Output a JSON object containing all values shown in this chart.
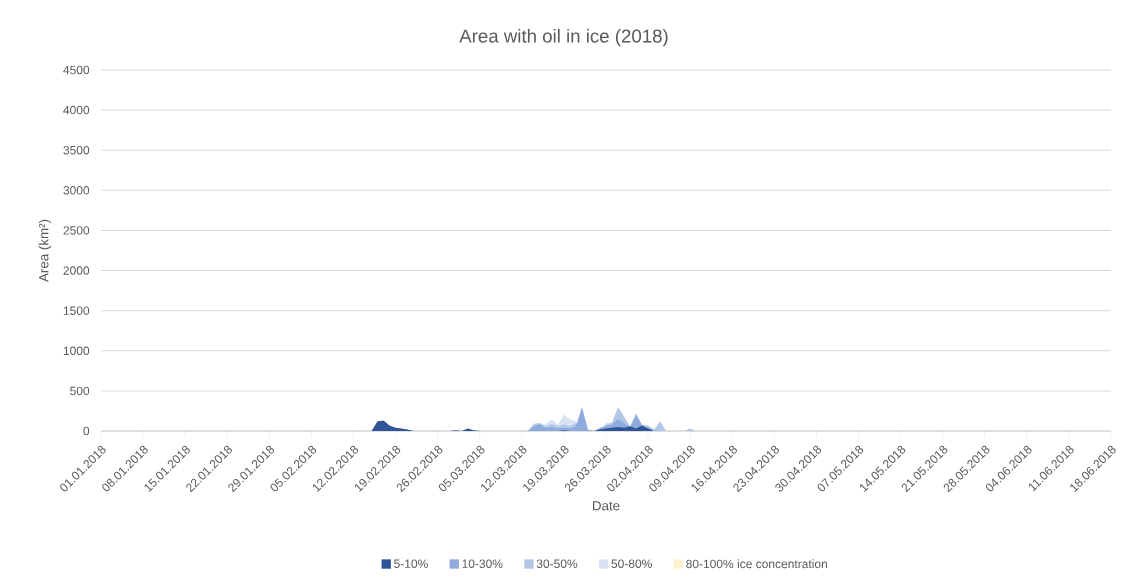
{
  "chart_data": {
    "type": "area",
    "title": "Area with oil in ice (2018)",
    "xlabel": "Date",
    "ylabel": "Area (km²)",
    "xlim": [
      "2018-01-01",
      "2018-06-18"
    ],
    "xticks": [
      {
        "value": "2018-01-01",
        "label": "01.01.2018"
      },
      {
        "value": "2018-01-08",
        "label": "08.01.2018"
      },
      {
        "value": "2018-01-15",
        "label": "15.01.2018"
      },
      {
        "value": "2018-01-22",
        "label": "22.01.2018"
      },
      {
        "value": "2018-01-29",
        "label": "29.01.2018"
      },
      {
        "value": "2018-02-05",
        "label": "05.02.2018"
      },
      {
        "value": "2018-02-12",
        "label": "12.02.2018"
      },
      {
        "value": "2018-02-19",
        "label": "19.02.2018"
      },
      {
        "value": "2018-02-26",
        "label": "26.02.2018"
      },
      {
        "value": "2018-03-05",
        "label": "05.03.2018"
      },
      {
        "value": "2018-03-12",
        "label": "12.03.2018"
      },
      {
        "value": "2018-03-19",
        "label": "19.03.2018"
      },
      {
        "value": "2018-03-26",
        "label": "26.03.2018"
      },
      {
        "value": "2018-04-02",
        "label": "02.04.2018"
      },
      {
        "value": "2018-04-09",
        "label": "09.04.2018"
      },
      {
        "value": "2018-04-16",
        "label": "16.04.2018"
      },
      {
        "value": "2018-04-23",
        "label": "23.04.2018"
      },
      {
        "value": "2018-04-30",
        "label": "30.04.2018"
      },
      {
        "value": "2018-05-07",
        "label": "07.05.2018"
      },
      {
        "value": "2018-05-14",
        "label": "14.05.2018"
      },
      {
        "value": "2018-05-21",
        "label": "21.05.2018"
      },
      {
        "value": "2018-05-28",
        "label": "28.05.2018"
      },
      {
        "value": "2018-06-04",
        "label": "04.06.2018"
      },
      {
        "value": "2018-06-11",
        "label": "11.06.2018"
      },
      {
        "value": "2018-06-18",
        "label": "18.06.2018"
      }
    ],
    "ylim": [
      0,
      4500
    ],
    "yticks": [
      0,
      500,
      1000,
      1500,
      2000,
      2500,
      3000,
      3500,
      4000,
      4500
    ],
    "grid": "y",
    "legend": "bottom",
    "marker": "none",
    "series": [
      {
        "name": "5-10%",
        "color": "#2f5597",
        "x": [
          "2018-02-15",
          "2018-02-16",
          "2018-02-17",
          "2018-02-18",
          "2018-02-19",
          "2018-02-20",
          "2018-02-21",
          "2018-02-22",
          "2018-02-23",
          "2018-02-28",
          "2018-03-01",
          "2018-03-02",
          "2018-03-03",
          "2018-03-04",
          "2018-03-05",
          "2018-03-18",
          "2018-03-19",
          "2018-03-20",
          "2018-03-24",
          "2018-03-25",
          "2018-03-26",
          "2018-03-27",
          "2018-03-28",
          "2018-03-29",
          "2018-03-30",
          "2018-03-31",
          "2018-04-01",
          "2018-04-02",
          "2018-04-03"
        ],
        "values": [
          0,
          120,
          130,
          70,
          40,
          30,
          20,
          0,
          0,
          0,
          10,
          0,
          30,
          10,
          0,
          0,
          10,
          0,
          0,
          20,
          30,
          40,
          50,
          40,
          60,
          30,
          70,
          30,
          0
        ]
      },
      {
        "name": "10-30%",
        "color": "#8faadc",
        "x": [
          "2018-03-13",
          "2018-03-14",
          "2018-03-15",
          "2018-03-16",
          "2018-03-17",
          "2018-03-18",
          "2018-03-19",
          "2018-03-20",
          "2018-03-21",
          "2018-03-22",
          "2018-03-23",
          "2018-03-24",
          "2018-03-25",
          "2018-03-26",
          "2018-03-27",
          "2018-03-28",
          "2018-03-29",
          "2018-03-30",
          "2018-03-31",
          "2018-04-01",
          "2018-04-02",
          "2018-04-03"
        ],
        "values": [
          0,
          60,
          80,
          40,
          50,
          30,
          40,
          30,
          60,
          300,
          20,
          0,
          40,
          60,
          80,
          150,
          100,
          40,
          200,
          60,
          40,
          0
        ]
      },
      {
        "name": "30-50%",
        "color": "#b4c7e7",
        "x": [
          "2018-03-13",
          "2018-03-14",
          "2018-03-15",
          "2018-03-16",
          "2018-03-17",
          "2018-03-18",
          "2018-03-19",
          "2018-03-20",
          "2018-03-21",
          "2018-03-23",
          "2018-03-25",
          "2018-03-26",
          "2018-03-27",
          "2018-03-28",
          "2018-03-29",
          "2018-03-30",
          "2018-03-31",
          "2018-04-01",
          "2018-04-02",
          "2018-04-03",
          "2018-04-04",
          "2018-04-05",
          "2018-04-08",
          "2018-04-09",
          "2018-04-10"
        ],
        "values": [
          0,
          90,
          100,
          60,
          90,
          60,
          80,
          60,
          100,
          0,
          0,
          80,
          100,
          300,
          180,
          60,
          220,
          80,
          70,
          20,
          120,
          0,
          0,
          30,
          0
        ]
      },
      {
        "name": "50-80%",
        "color": "#dae3f3",
        "x": [
          "2018-03-14",
          "2018-03-15",
          "2018-03-16",
          "2018-03-17",
          "2018-03-18",
          "2018-03-19",
          "2018-03-20",
          "2018-03-21",
          "2018-03-22",
          "2018-03-25",
          "2018-03-26",
          "2018-03-27",
          "2018-03-29",
          "2018-03-30"
        ],
        "values": [
          0,
          60,
          90,
          140,
          80,
          200,
          150,
          120,
          0,
          0,
          100,
          110,
          20,
          0
        ]
      },
      {
        "name": "80-100% ice concentration",
        "color": "#fff2cc",
        "x": [
          "2018-03-18",
          "2018-03-19",
          "2018-03-20"
        ],
        "values": [
          0,
          220,
          0
        ]
      }
    ]
  }
}
